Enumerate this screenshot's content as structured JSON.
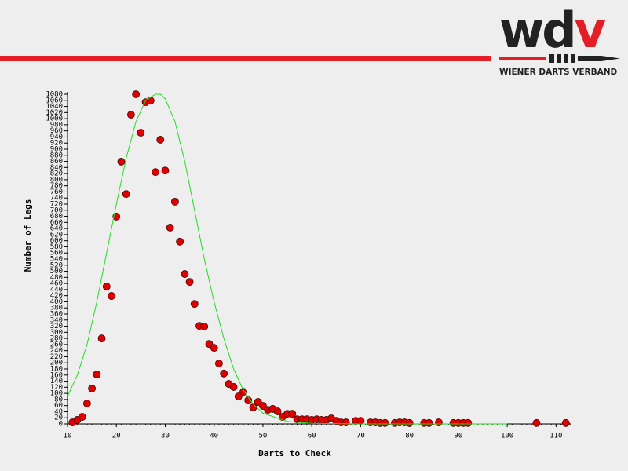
{
  "header": {
    "logo": [
      "wd",
      "v"
    ],
    "subtitle": "WIENER DARTS VERBAND"
  },
  "chart_data": {
    "type": "scatter",
    "x_label": "Darts to Check",
    "y_label": "Number of Legs",
    "xlim": [
      10,
      113
    ],
    "ylim": [
      0,
      1080
    ],
    "xticks": [
      10,
      20,
      30,
      40,
      50,
      60,
      70,
      80,
      90,
      100,
      110
    ],
    "yticks": [
      0,
      20,
      40,
      60,
      80,
      100,
      120,
      140,
      160,
      180,
      200,
      220,
      240,
      260,
      280,
      300,
      320,
      340,
      360,
      380,
      400,
      420,
      440,
      460,
      480,
      500,
      520,
      540,
      560,
      580,
      600,
      620,
      640,
      660,
      680,
      700,
      720,
      740,
      760,
      780,
      800,
      820,
      840,
      860,
      880,
      900,
      920,
      940,
      960,
      980,
      1000,
      1020,
      1040,
      1060,
      1080
    ],
    "series": [
      {
        "type": "scatter",
        "color": "#e00000",
        "x": [
          11,
          12,
          13,
          14,
          15,
          16,
          17,
          18,
          19,
          20,
          21,
          22,
          23,
          24,
          25,
          26,
          27,
          28,
          29,
          30,
          31,
          32,
          33,
          34,
          35,
          36,
          37,
          38,
          39,
          40,
          41,
          42,
          43,
          44,
          45,
          46,
          47,
          48,
          49,
          50,
          51,
          52,
          53,
          54,
          55,
          56,
          57,
          58,
          59,
          60,
          61,
          62,
          63,
          64,
          65,
          66,
          67,
          69,
          70,
          72,
          73,
          74,
          75,
          77,
          78,
          79,
          80,
          83,
          84,
          86,
          89,
          90,
          91,
          92,
          106,
          112
        ],
        "values": [
          5,
          13,
          23,
          67,
          116,
          162,
          280,
          450,
          419,
          679,
          859,
          753,
          1013,
          1080,
          954,
          1054,
          1059,
          825,
          931,
          830,
          643,
          728,
          597,
          491,
          465,
          393,
          321,
          319,
          262,
          249,
          198,
          165,
          131,
          121,
          90,
          105,
          77,
          54,
          72,
          59,
          46,
          49,
          41,
          23,
          33,
          33,
          15,
          15,
          15,
          13,
          15,
          13,
          13,
          18,
          10,
          5,
          5,
          10,
          10,
          5,
          5,
          3,
          3,
          3,
          5,
          5,
          3,
          3,
          3,
          5,
          3,
          3,
          3,
          3,
          3,
          3
        ]
      },
      {
        "type": "line",
        "color": "#22dd22",
        "x": [
          10,
          12,
          14,
          16,
          18,
          20,
          22,
          24,
          26,
          28,
          29,
          30,
          32,
          34,
          36,
          38,
          40,
          42,
          44,
          46,
          48,
          50,
          55,
          60,
          70,
          80,
          100
        ],
        "values": [
          90,
          160,
          260,
          400,
          560,
          720,
          870,
          990,
          1060,
          1080,
          1080,
          1065,
          990,
          860,
          700,
          540,
          400,
          280,
          180,
          110,
          65,
          35,
          8,
          2,
          0,
          0,
          0
        ]
      }
    ]
  }
}
